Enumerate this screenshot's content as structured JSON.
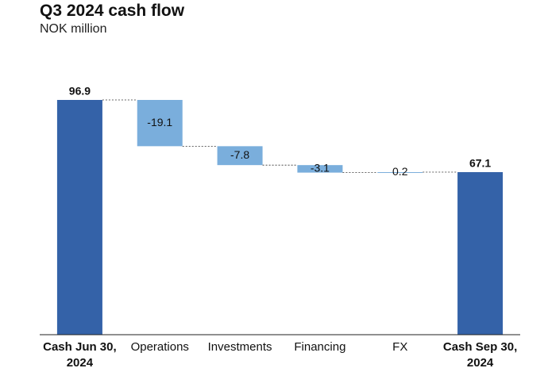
{
  "chart_data": {
    "type": "waterfall",
    "title": "Q3 2024 cash flow",
    "subtitle": "NOK million",
    "categories": [
      "Cash Jun 30, 2024",
      "Operations",
      "Investments",
      "Financing",
      "FX",
      "Cash Sep 30, 2024"
    ],
    "values": [
      96.9,
      -19.1,
      -7.8,
      -3.1,
      0.2,
      67.1
    ],
    "total_color": "#3462a8",
    "color": "#7aaedc"
  }
}
